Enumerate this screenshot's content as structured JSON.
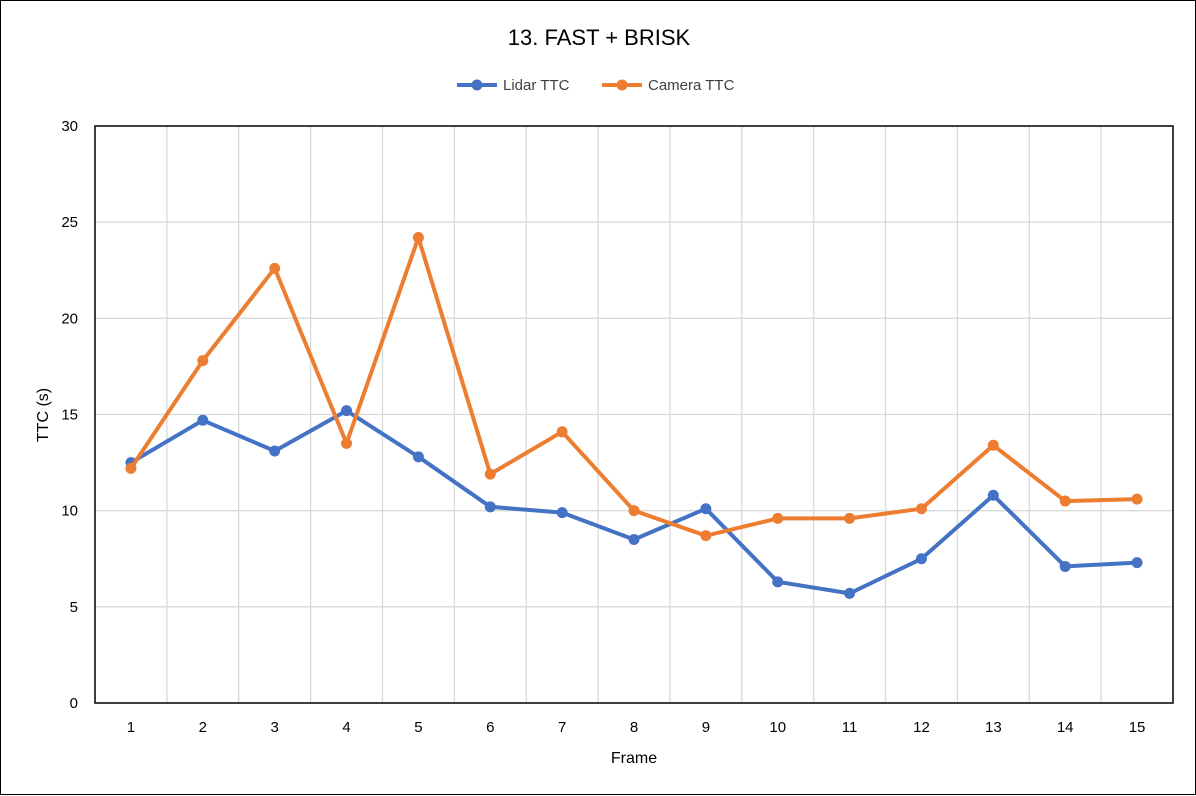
{
  "chart_data": {
    "type": "line",
    "title": "13. FAST + BRISK",
    "xlabel": "Frame",
    "ylabel": "TTC (s)",
    "categories": [
      "1",
      "2",
      "3",
      "4",
      "5",
      "6",
      "7",
      "8",
      "9",
      "10",
      "11",
      "12",
      "13",
      "14",
      "15"
    ],
    "ylim": [
      0,
      30
    ],
    "yticks": [
      0,
      5,
      10,
      15,
      20,
      25,
      30
    ],
    "grid": true,
    "legend_position": "top-center",
    "series": [
      {
        "name": "Lidar TTC",
        "color": "#4472C4",
        "values": [
          12.5,
          14.7,
          13.1,
          15.2,
          12.8,
          10.2,
          9.9,
          8.5,
          10.1,
          6.3,
          5.7,
          7.5,
          10.8,
          7.1,
          7.3
        ]
      },
      {
        "name": "Camera TTC",
        "color": "#ED7D31",
        "values": [
          12.2,
          17.8,
          22.6,
          13.5,
          24.2,
          11.9,
          14.1,
          10.0,
          8.7,
          9.6,
          9.6,
          10.1,
          13.4,
          10.5,
          10.6
        ]
      }
    ]
  }
}
